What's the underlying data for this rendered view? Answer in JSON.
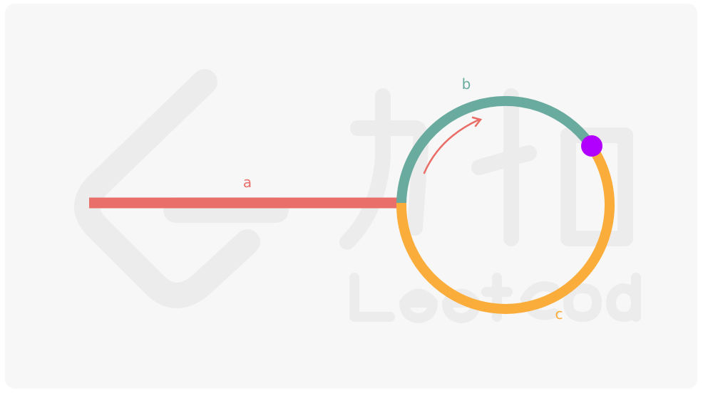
{
  "labels": {
    "a": "a",
    "b": "b",
    "c": "c"
  },
  "colors": {
    "a": "#e96f6a",
    "b": "#6aab9f",
    "c": "#fbad3b",
    "meet_point": "#b200ff",
    "arrow": "#ea6c66",
    "background": "#f7f7f7",
    "watermark": "#ececec"
  },
  "watermark": {
    "name": "leetcode-logo"
  }
}
